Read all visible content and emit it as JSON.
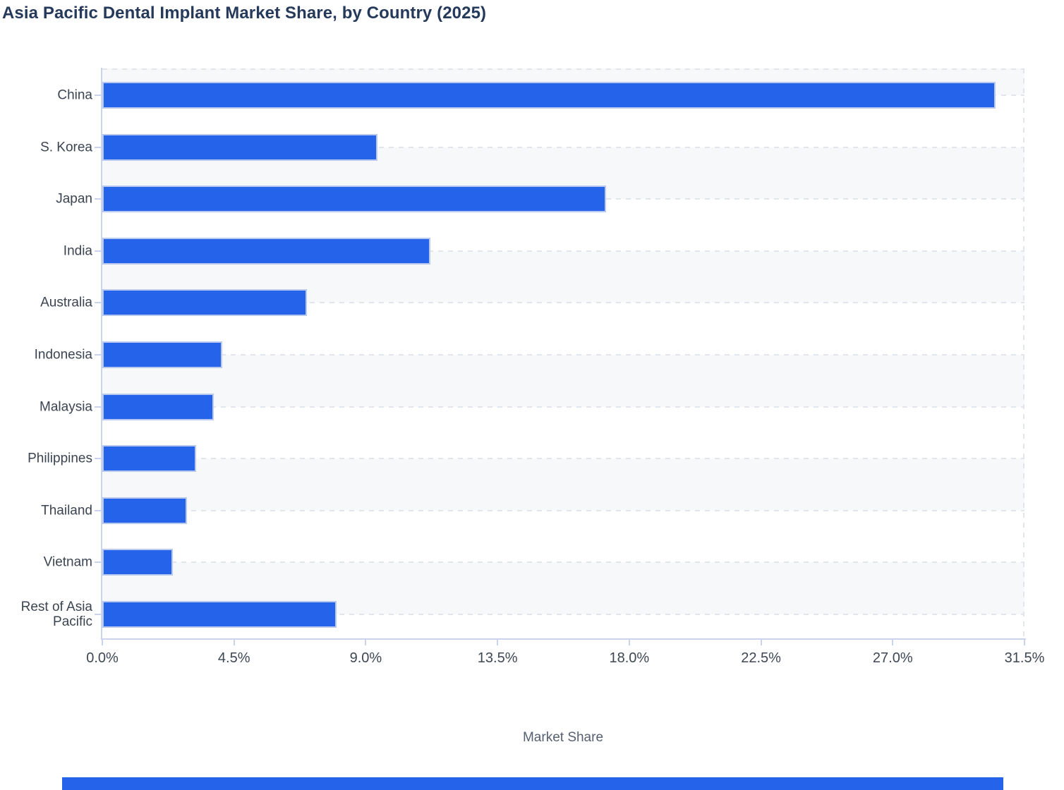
{
  "title": "Asia Pacific Dental Implant Market Share, by Country (2025)",
  "chart_data": {
    "type": "bar",
    "orientation": "horizontal",
    "title": "Asia Pacific Dental Implant Market Share, by Country (2025)",
    "categories": [
      "China",
      "S. Korea",
      "Japan",
      "India",
      "Australia",
      "Indonesia",
      "Malaysia",
      "Philippines",
      "Thailand",
      "Vietnam",
      "Rest of Asia Pacific"
    ],
    "values": [
      30.5,
      9.4,
      17.2,
      11.2,
      7.0,
      4.1,
      3.8,
      3.2,
      2.9,
      2.4,
      8.0
    ],
    "unit": "%",
    "xlabel": "Market Share",
    "ylabel": "",
    "xlim": [
      0,
      31.5
    ],
    "x_tick_values": [
      0.0,
      4.5,
      9.0,
      13.5,
      18.0,
      22.5,
      27.0,
      31.5
    ],
    "x_tick_labels": [
      "0.0%",
      "4.5%",
      "9.0%",
      "13.5%",
      "18.0%",
      "22.5%",
      "27.0%",
      "31.5%"
    ],
    "grid": "horizontal-dashed",
    "legend": "none",
    "plot_background": "alternating horizontal stripes"
  },
  "colors": {
    "bar": "#2563eb",
    "bar_border": "#b9c8ee",
    "title_text": "#25395a",
    "axis_line": "#c9d3ec",
    "gridline": "#e2e5eb",
    "stripe": "#f7f8fa",
    "tick_label": "#3e4754",
    "category_label": "#3b4450",
    "axis_title": "#566070",
    "bottom_bar": "#2563eb"
  }
}
